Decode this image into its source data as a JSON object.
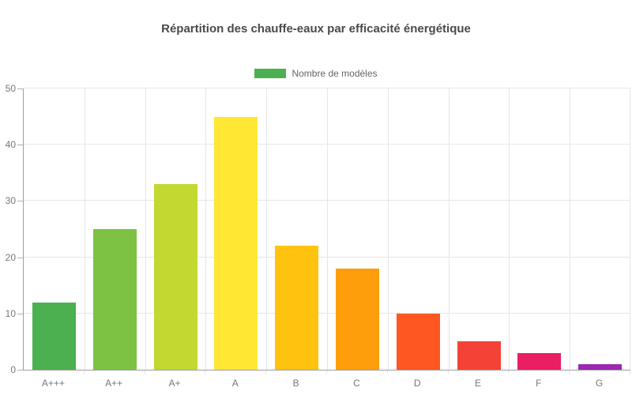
{
  "chart_data": {
    "type": "bar",
    "title": "Répartition des chauffe-eaux par efficacité énergétique",
    "legend": {
      "label": "Nombre de modèles",
      "swatch_color": "#4caf50",
      "position": "top"
    },
    "categories": [
      "A+++",
      "A++",
      "A+",
      "A",
      "B",
      "C",
      "D",
      "E",
      "F",
      "G"
    ],
    "series": [
      {
        "name": "Nombre de modèles",
        "values": [
          12,
          25,
          33,
          45,
          22,
          18,
          10,
          5,
          3,
          1
        ]
      }
    ],
    "bar_colors": [
      "#4caf50",
      "#7dc243",
      "#c3d831",
      "#ffe733",
      "#ffc30f",
      "#ff9e0b",
      "#ff5722",
      "#f44336",
      "#e91e63",
      "#9c27b0"
    ],
    "xlabel": "",
    "ylabel": "",
    "ylim": [
      0,
      50
    ],
    "yticks": [
      0,
      10,
      20,
      30,
      40,
      50
    ],
    "grid": true,
    "colors": {
      "axis_line": "#9e9e9e",
      "grid_line": "#e6e6e6",
      "tick_mark": "#b0b0b0",
      "tick_label": "#777777",
      "title": "#4a4a4a",
      "background": "#ffffff"
    }
  }
}
